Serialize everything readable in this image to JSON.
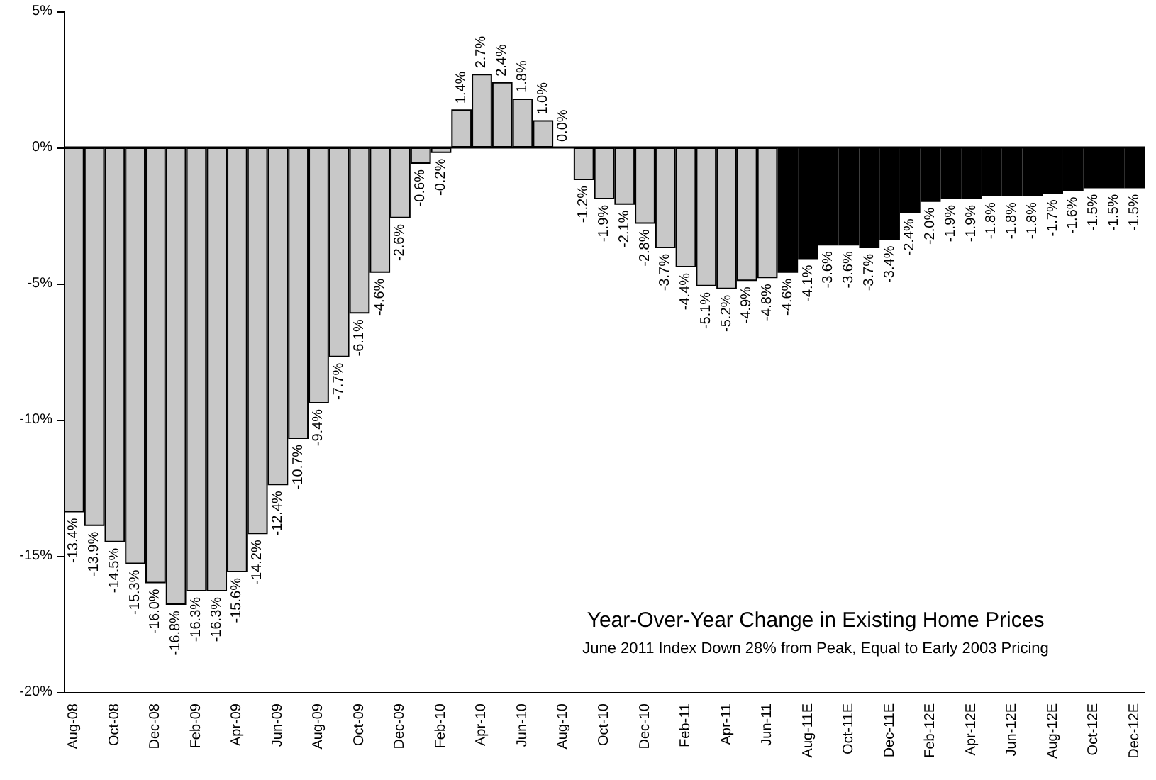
{
  "chart_data": {
    "type": "bar",
    "title": "Year-Over-Year Change in Existing Home Prices",
    "subtitle": "June 2011 Index Down 28% from Peak, Equal to Early 2003 Pricing",
    "categories": [
      "Aug-08",
      null,
      "Oct-08",
      null,
      "Dec-08",
      null,
      "Feb-09",
      null,
      "Apr-09",
      null,
      "Jun-09",
      null,
      "Aug-09",
      null,
      "Oct-09",
      null,
      "Dec-09",
      null,
      "Feb-10",
      null,
      "Apr-10",
      null,
      "Jun-10",
      null,
      "Aug-10",
      null,
      "Oct-10",
      null,
      "Dec-10",
      null,
      "Feb-11",
      null,
      "Apr-11",
      null,
      "Jun-11",
      null,
      "Aug-11E",
      null,
      "Oct-11E",
      null,
      "Dec-11E",
      null,
      "Feb-12E",
      null,
      "Apr-12E",
      null,
      "Jun-12E",
      null,
      "Aug-12E",
      null,
      "Oct-12E",
      null,
      "Dec-12E"
    ],
    "values": [
      -13.4,
      -13.9,
      -14.5,
      -15.3,
      -16.0,
      -16.8,
      -16.3,
      -16.3,
      -15.6,
      -14.2,
      -12.4,
      -10.7,
      -9.4,
      -7.7,
      -6.1,
      -4.6,
      -2.6,
      -0.6,
      -0.2,
      1.4,
      2.7,
      2.4,
      1.8,
      1.0,
      0.0,
      -1.2,
      -1.9,
      -2.1,
      -2.8,
      -3.7,
      -4.4,
      -5.1,
      -5.2,
      -4.9,
      -4.8,
      -4.6,
      -4.1,
      -3.6,
      -3.6,
      -3.7,
      -3.4,
      -2.4,
      -2.0,
      -1.9,
      -1.9,
      -1.8,
      -1.8,
      -1.8,
      -1.7,
      -1.6,
      -1.5,
      -1.5,
      -1.5
    ],
    "value_labels": [
      "-13.4%",
      "-13.9%",
      "-14.5%",
      "-15.3%",
      "-16.0%",
      "-16.8%",
      "-16.3%",
      "-16.3%",
      "-15.6%",
      "-14.2%",
      "-12.4%",
      "-10.7%",
      "-9.4%",
      "-7.7%",
      "-6.1%",
      "-4.6%",
      "-2.6%",
      "-0.6%",
      "-0.2%",
      "1.4%",
      "2.7%",
      "2.4%",
      "1.8%",
      "1.0%",
      "0.0%",
      "-1.2%",
      "-1.9%",
      "-2.1%",
      "-2.8%",
      "-3.7%",
      "-4.4%",
      "-5.1%",
      "-5.2%",
      "-4.9%",
      "-4.8%",
      "-4.6%",
      "-4.1%",
      "-3.6%",
      "-3.6%",
      "-3.7%",
      "-3.4%",
      "-2.4%",
      "-2.0%",
      "-1.9%",
      "-1.9%",
      "-1.8%",
      "-1.8%",
      "-1.8%",
      "-1.7%",
      "-1.6%",
      "-1.5%",
      "-1.5%",
      "-1.5%"
    ],
    "colors": [
      "#c8c8c8",
      "#c8c8c8",
      "#c8c8c8",
      "#c8c8c8",
      "#c8c8c8",
      "#c8c8c8",
      "#c8c8c8",
      "#c8c8c8",
      "#c8c8c8",
      "#c8c8c8",
      "#c8c8c8",
      "#c8c8c8",
      "#c8c8c8",
      "#c8c8c8",
      "#c8c8c8",
      "#c8c8c8",
      "#c8c8c8",
      "#c8c8c8",
      "#c8c8c8",
      "#c8c8c8",
      "#c8c8c8",
      "#c8c8c8",
      "#c8c8c8",
      "#c8c8c8",
      "#c8c8c8",
      "#c8c8c8",
      "#c8c8c8",
      "#c8c8c8",
      "#c8c8c8",
      "#c8c8c8",
      "#c8c8c8",
      "#c8c8c8",
      "#c8c8c8",
      "#c8c8c8",
      "#c8c8c8",
      "#000000",
      "#000000",
      "#000000",
      "#000000",
      "#000000",
      "#000000",
      "#000000",
      "#000000",
      "#000000",
      "#000000",
      "#000000",
      "#000000",
      "#000000",
      "#000000",
      "#000000",
      "#000000",
      "#000000",
      "#000000"
    ],
    "ylim": [
      -20,
      5
    ],
    "yticks": [
      {
        "value": -20,
        "label": "-20%"
      },
      {
        "value": -15,
        "label": "-15%"
      },
      {
        "value": -10,
        "label": "-10%"
      },
      {
        "value": -5,
        "label": "-5%"
      },
      {
        "value": 0,
        "label": "0%"
      },
      {
        "value": 5,
        "label": "5%"
      }
    ],
    "ref_lines": [
      {
        "axis": "y",
        "value": 0,
        "color": "#000000"
      }
    ],
    "grid": false
  }
}
